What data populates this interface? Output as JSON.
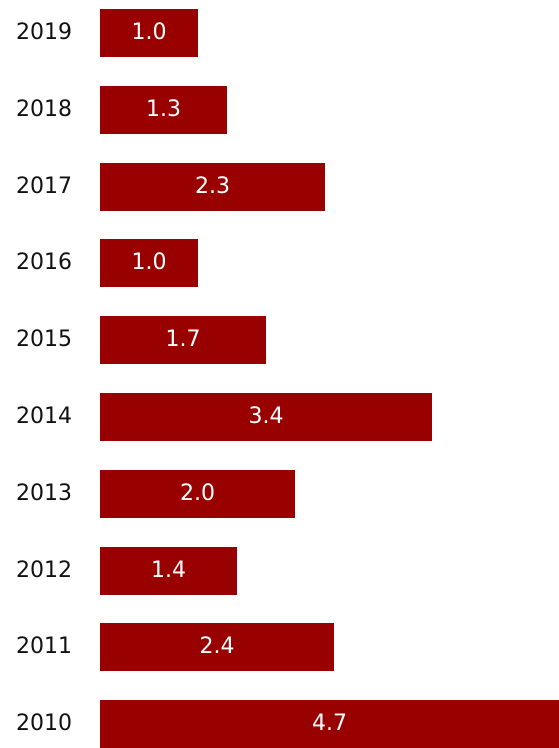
{
  "chart_data": {
    "type": "bar",
    "orientation": "horizontal",
    "title": "",
    "xlabel": "",
    "ylabel": "",
    "categories": [
      "2019",
      "2018",
      "2017",
      "2016",
      "2015",
      "2014",
      "2013",
      "2012",
      "2011",
      "2010"
    ],
    "values": [
      1.0,
      1.3,
      2.3,
      1.0,
      1.7,
      3.4,
      2.0,
      1.4,
      2.4,
      4.7
    ],
    "value_labels": [
      "1.0",
      "1.3",
      "2.3",
      "1.0",
      "1.7",
      "3.4",
      "2.0",
      "1.4",
      "2.4",
      "4.7"
    ],
    "xlim": [
      0,
      4.7
    ],
    "grid": false,
    "legend": "none",
    "colors": {
      "bar": "#990000",
      "value_text": "#ffffff",
      "category_text": "#111111"
    }
  }
}
